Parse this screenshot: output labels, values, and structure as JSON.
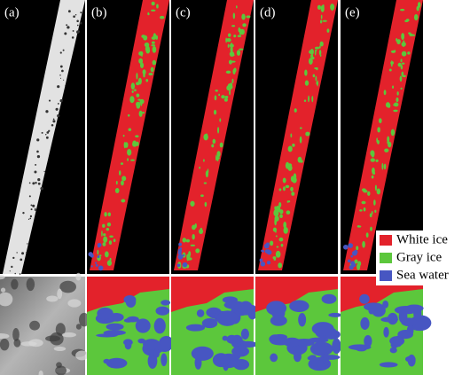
{
  "panels": [
    {
      "label": "(a)"
    },
    {
      "label": "(b)"
    },
    {
      "label": "(c)"
    },
    {
      "label": "(d)"
    },
    {
      "label": "(e)"
    }
  ],
  "legend": [
    {
      "label": "White ice",
      "color": "#e3222b"
    },
    {
      "label": "Gray ice",
      "color": "#5cc73c"
    },
    {
      "label": "Sea water",
      "color": "#4756c2"
    }
  ]
}
